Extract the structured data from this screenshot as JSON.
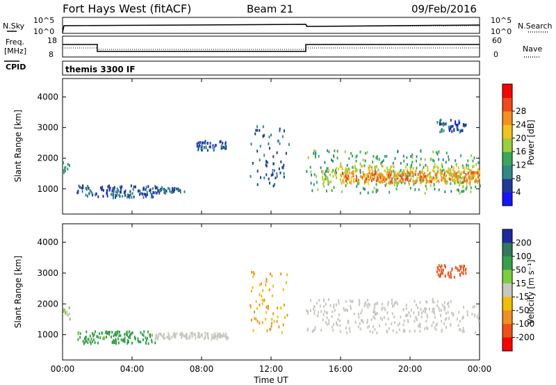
{
  "header": {
    "station": "Fort Hays West (fitACF)",
    "beam": "Beam 21",
    "date": "09/Feb/2016"
  },
  "noise_panel": {
    "left_label": "N.Sky",
    "right_label": "N.Search",
    "left_ticks": [
      "10^5",
      "10^0"
    ],
    "right_ticks": [
      "10^5",
      "10^0"
    ]
  },
  "freq_panel": {
    "left_label_line1": "Freq.",
    "left_label_line2": "[MHz]",
    "left_ticks": [
      "18",
      "8"
    ],
    "right_ticks": [
      "60",
      "0"
    ],
    "right_label": "Nave",
    "cpid_label": "CPID",
    "cpid_text": "themis 3300 IF"
  },
  "chart_data": [
    {
      "type": "heatmap",
      "name": "power",
      "ylabel": "Slant Range [km]",
      "ylim": [
        180,
        4600
      ],
      "yticks": [
        1000,
        2000,
        3000,
        4000
      ],
      "x": [
        "00:00",
        "04:00",
        "08:00",
        "12:00",
        "16:00",
        "20:00",
        "00:00"
      ],
      "colorbar_label": "Power [dB]",
      "colorbar_ticks": [
        4,
        8,
        12,
        16,
        20,
        24,
        28
      ],
      "colorbar_colors": [
        "#1515ff",
        "#1e3a9a",
        "#2f8a86",
        "#3aa85a",
        "#9ccf3c",
        "#f3c21c",
        "#f5901e",
        "#f04a18",
        "#ff0000"
      ],
      "regions": [
        {
          "t": [
            0.0,
            0.4
          ],
          "r": [
            1550,
            1950
          ],
          "level": 12
        },
        {
          "t": [
            0.8,
            5.3
          ],
          "r": [
            750,
            1150
          ],
          "level": 7
        },
        {
          "t": [
            5.3,
            7.0
          ],
          "r": [
            900,
            1100
          ],
          "level": 8
        },
        {
          "t": [
            7.6,
            9.4
          ],
          "r": [
            2300,
            2600
          ],
          "level": 7
        },
        {
          "t": [
            10.7,
            13.0
          ],
          "r": [
            1100,
            3100
          ],
          "level": 8
        },
        {
          "t": [
            14.0,
            24.0
          ],
          "r": [
            900,
            2300
          ],
          "level": 14
        },
        {
          "t": [
            14.8,
            24.0
          ],
          "r": [
            1200,
            1800
          ],
          "level": 20
        },
        {
          "t": [
            16.0,
            24.0
          ],
          "r": [
            1250,
            1600
          ],
          "level": 27
        },
        {
          "t": [
            21.5,
            23.2
          ],
          "r": [
            2900,
            3300
          ],
          "level": 7
        }
      ]
    },
    {
      "type": "heatmap",
      "name": "velocity",
      "ylabel": "Slant Range [km]",
      "ylim": [
        180,
        4600
      ],
      "yticks": [
        1000,
        2000,
        3000,
        4000
      ],
      "x": [
        "00:00",
        "04:00",
        "08:00",
        "12:00",
        "16:00",
        "20:00",
        "00:00"
      ],
      "xlabel": "Time UT",
      "colorbar_label": "Velocity [m s⁻¹]",
      "colorbar_ticks": [
        "200",
        "100",
        "50",
        "15",
        "-15",
        "-50",
        "-100",
        "-200"
      ],
      "colorbar_colors": [
        "#1e2aa0",
        "#2f7a5a",
        "#35a04a",
        "#7ccf3c",
        "#c8c8c0",
        "#f0c000",
        "#f09020",
        "#f05018",
        "#ff0000"
      ],
      "regions": [
        {
          "t": [
            0.0,
            0.4
          ],
          "r": [
            1550,
            1950
          ],
          "velocity": 10
        },
        {
          "t": [
            0.8,
            5.3
          ],
          "r": [
            750,
            1150
          ],
          "velocity": 45
        },
        {
          "t": [
            5.3,
            9.5
          ],
          "r": [
            900,
            1100
          ],
          "velocity": 0
        },
        {
          "t": [
            10.7,
            13.0
          ],
          "r": [
            1100,
            3100
          ],
          "velocity": -30
        },
        {
          "t": [
            14.0,
            24.0
          ],
          "r": [
            1100,
            2200
          ],
          "velocity": 0
        },
        {
          "t": [
            21.5,
            23.2
          ],
          "r": [
            2900,
            3300
          ],
          "velocity": -120
        }
      ]
    }
  ]
}
